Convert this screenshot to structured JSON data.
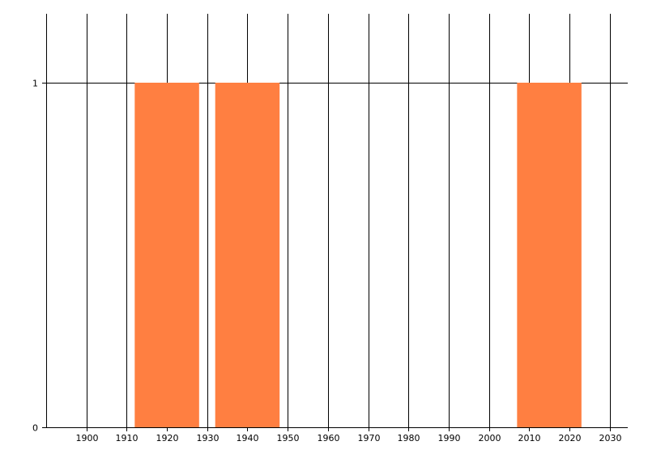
{
  "chart_data": {
    "type": "bar",
    "title": "",
    "xlabel": "",
    "ylabel": "",
    "xlim": [
      1890,
      2034.5
    ],
    "ylim": [
      0,
      1.2
    ],
    "x_ticks": [
      1900,
      1910,
      1920,
      1930,
      1940,
      1950,
      1960,
      1970,
      1980,
      1990,
      2000,
      2010,
      2020,
      2030
    ],
    "y_ticks": [
      0,
      1
    ],
    "grid": true,
    "bar_color": "#FF7F41",
    "bars": [
      {
        "x_start": 1912,
        "x_end": 1928,
        "value": 1
      },
      {
        "x_start": 1932,
        "x_end": 1948,
        "value": 1
      },
      {
        "x_start": 2007,
        "x_end": 2023,
        "value": 1
      }
    ]
  }
}
